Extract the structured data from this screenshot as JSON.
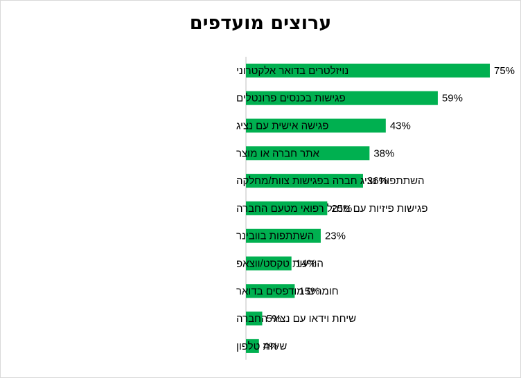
{
  "chart_data": {
    "type": "bar",
    "orientation": "horizontal",
    "title": "ערוצים מועדפים",
    "categories": [
      "נויזלטרים בדואר אלקטרוני",
      "פגישות בכנסים פרונטלים",
      "פגישה אישית עם נציג",
      " אתר חברה או מוצר",
      "השתתפות נציג חברה בפגישות צוות/מחלקה",
      "פגישות פיזיות  עם מנהל רפואי מטעם החברה",
      "השתתפות בוובינר",
      "הודעות טקסט/ווצאפ",
      "חומרים מודפסים בדואר",
      "שיחת וידאו עם נציגי החברה",
      "שיחת טלפון"
    ],
    "values": [
      75,
      59,
      43,
      38,
      36,
      25,
      23,
      14,
      15,
      5,
      4
    ],
    "value_labels": [
      "75%",
      "59%",
      "43%",
      "38%",
      "36%",
      "25%",
      "23%",
      "14%",
      "15%",
      "5%",
      "4%"
    ],
    "xlim": [
      0,
      75
    ],
    "grid": false,
    "legend": "none",
    "bar_color": "#00b050"
  }
}
